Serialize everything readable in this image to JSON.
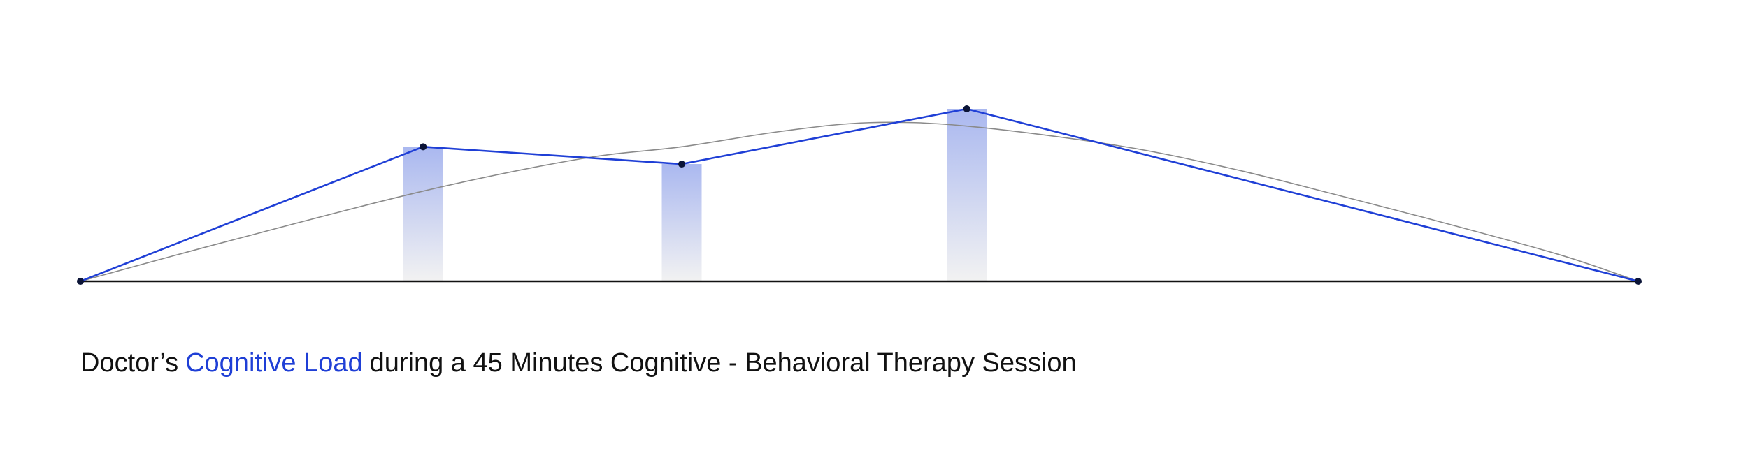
{
  "chart_data": {
    "type": "line",
    "title_parts": [
      "Doctor’s",
      "Cognitive Load",
      "during a 45 Minutes Cognitive - Behavioral Therapy Session"
    ],
    "title_colors": [
      "#111111",
      "#1f3fd6",
      "#111111"
    ],
    "x": [
      0,
      22,
      38.6,
      56.9,
      100
    ],
    "values": [
      0,
      78,
      68,
      100,
      0
    ],
    "color": "#1f3fd6",
    "bar_color": "#aab8f0",
    "point_color": "#0b1437",
    "curve": {
      "color": "#8a8a8a",
      "x": [
        0,
        9.2,
        22,
        32.1,
        38.6,
        45,
        50.7,
        56.9,
        66.4,
        73.6,
        80.7,
        87.9,
        95.1,
        100
      ],
      "values": [
        0,
        22.6,
        52.3,
        71,
        78,
        87,
        92,
        90,
        79,
        66,
        50,
        33,
        15,
        0
      ]
    },
    "xlim": [
      0,
      100
    ],
    "ylim": [
      0,
      100
    ]
  }
}
